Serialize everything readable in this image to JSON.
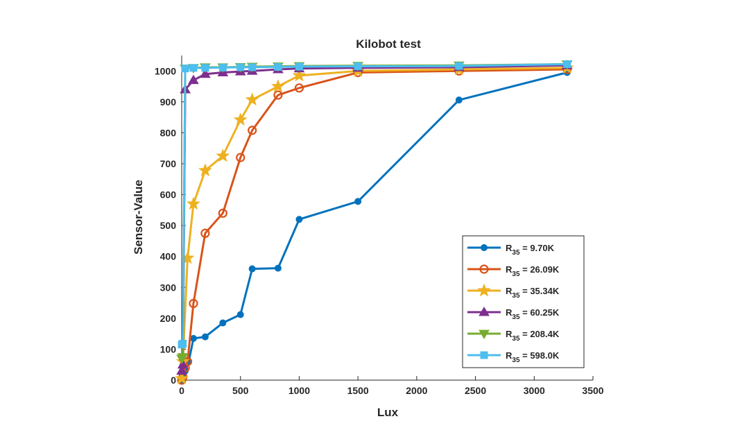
{
  "chart_data": {
    "type": "line",
    "title": "Kilobot test",
    "xlabel": "Lux",
    "ylabel": "Sensor-Value",
    "xlim": [
      0,
      3500
    ],
    "ylim": [
      0,
      1050
    ],
    "xticks": [
      0,
      500,
      1000,
      1500,
      2000,
      2500,
      3000,
      3500
    ],
    "yticks": [
      0,
      100,
      200,
      300,
      400,
      500,
      600,
      700,
      800,
      900,
      1000
    ],
    "grid": false,
    "legend_position": "bottom-right",
    "series": [
      {
        "name": "R35 = 9.70K",
        "label_main": "R",
        "label_sub": "35",
        "label_rest": " = 9.70K",
        "color": "#0072BD",
        "marker": "circle-filled",
        "x": [
          0,
          10,
          30,
          60,
          100,
          200,
          350,
          500,
          600,
          820,
          1000,
          1500,
          2360,
          3280
        ],
        "y": [
          0,
          15,
          30,
          60,
          135,
          140,
          185,
          212,
          360,
          362,
          520,
          578,
          906,
          995
        ]
      },
      {
        "name": "R35 = 26.09K",
        "label_main": "R",
        "label_sub": "35",
        "label_rest": " = 26.09K",
        "color": "#D95319",
        "marker": "circle-open",
        "x": [
          0,
          10,
          30,
          50,
          100,
          200,
          350,
          500,
          600,
          820,
          1000,
          1500,
          2360,
          3280
        ],
        "y": [
          0,
          10,
          40,
          60,
          248,
          475,
          540,
          720,
          808,
          922,
          945,
          995,
          1000,
          1005
        ]
      },
      {
        "name": "R35 = 35.34K",
        "label_main": "R",
        "label_sub": "35",
        "label_rest": " = 35.34K",
        "color": "#EDB120",
        "marker": "star",
        "x": [
          0,
          10,
          50,
          100,
          200,
          350,
          500,
          600,
          820,
          1000,
          1500,
          2360,
          3280
        ],
        "y": [
          5,
          60,
          395,
          570,
          678,
          725,
          842,
          907,
          950,
          985,
          1000,
          1005,
          1010
        ]
      },
      {
        "name": "R35 = 60.25K",
        "label_main": "R",
        "label_sub": "35",
        "label_rest": " = 60.25K",
        "color": "#7E2F8E",
        "marker": "triangle-up",
        "x": [
          0,
          10,
          30,
          100,
          200,
          350,
          500,
          600,
          820,
          1000,
          1500,
          2360,
          3280
        ],
        "y": [
          30,
          50,
          940,
          970,
          990,
          995,
          998,
          1000,
          1005,
          1008,
          1010,
          1012,
          1018
        ]
      },
      {
        "name": "R35 = 208.4K",
        "label_main": "R",
        "label_sub": "35",
        "label_rest": " = 208.4K",
        "color": "#77AC30",
        "marker": "triangle-down",
        "x": [
          0,
          10,
          30,
          100,
          200,
          350,
          500,
          600,
          820,
          1000,
          1500,
          2360,
          3280
        ],
        "y": [
          70,
          75,
          1008,
          1010,
          1012,
          1012,
          1013,
          1014,
          1015,
          1016,
          1017,
          1018,
          1022
        ]
      },
      {
        "name": "R35 = 598.0K",
        "label_main": "R",
        "label_sub": "35",
        "label_rest": " = 598.0K",
        "color": "#4DBEEE",
        "marker": "square",
        "x": [
          0,
          10,
          30,
          100,
          200,
          350,
          500,
          600,
          820,
          1000,
          1500,
          2360,
          3280
        ],
        "y": [
          115,
          118,
          1008,
          1010,
          1010,
          1011,
          1012,
          1012,
          1013,
          1014,
          1015,
          1016,
          1022
        ]
      }
    ]
  }
}
